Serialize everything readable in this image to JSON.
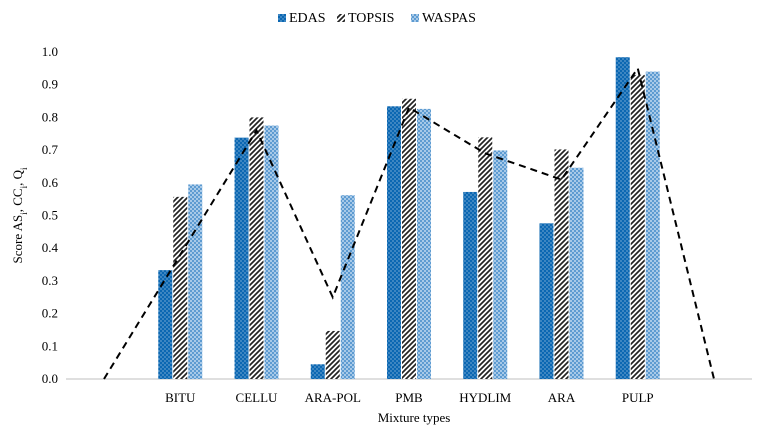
{
  "chart_data": {
    "type": "bar",
    "categories": [
      "",
      "BITU",
      "CELLU",
      "ARA-POL",
      "PMB",
      "HYDLIM",
      "ARA",
      "PULP",
      ""
    ],
    "series": [
      {
        "name": "EDAS",
        "values": [
          null,
          0.333,
          0.738,
          0.045,
          0.834,
          0.572,
          0.476,
          0.984,
          null
        ],
        "color": "#1f77b4"
      },
      {
        "name": "TOPSIS",
        "values": [
          null,
          0.557,
          0.8,
          0.147,
          0.857,
          0.739,
          0.702,
          0.93,
          null
        ],
        "color": "#333333"
      },
      {
        "name": "WASPAS",
        "values": [
          null,
          0.595,
          0.775,
          0.562,
          0.826,
          0.699,
          0.646,
          0.94,
          null
        ],
        "color": "#6baed6"
      }
    ],
    "trendline": {
      "style": "dashed",
      "color": "#000000",
      "values": [
        0.0,
        0.38,
        0.76,
        0.25,
        0.83,
        0.69,
        0.61,
        0.95,
        0.0
      ]
    },
    "title": "",
    "xlabel": "Mixture types",
    "ylabel": "Score AS",
    "ylabel_subscripts": [
      "i",
      "i",
      "i"
    ],
    "ylabel_parts": [
      "AS",
      ", CC",
      ", Q"
    ],
    "ylim": [
      0,
      1.0
    ],
    "yticks": [
      "0.0",
      "0.1",
      "0.2",
      "0.3",
      "0.4",
      "0.5",
      "0.6",
      "0.7",
      "0.8",
      "0.9",
      "1.0"
    ],
    "legend_position": "top-center",
    "grid": false
  }
}
